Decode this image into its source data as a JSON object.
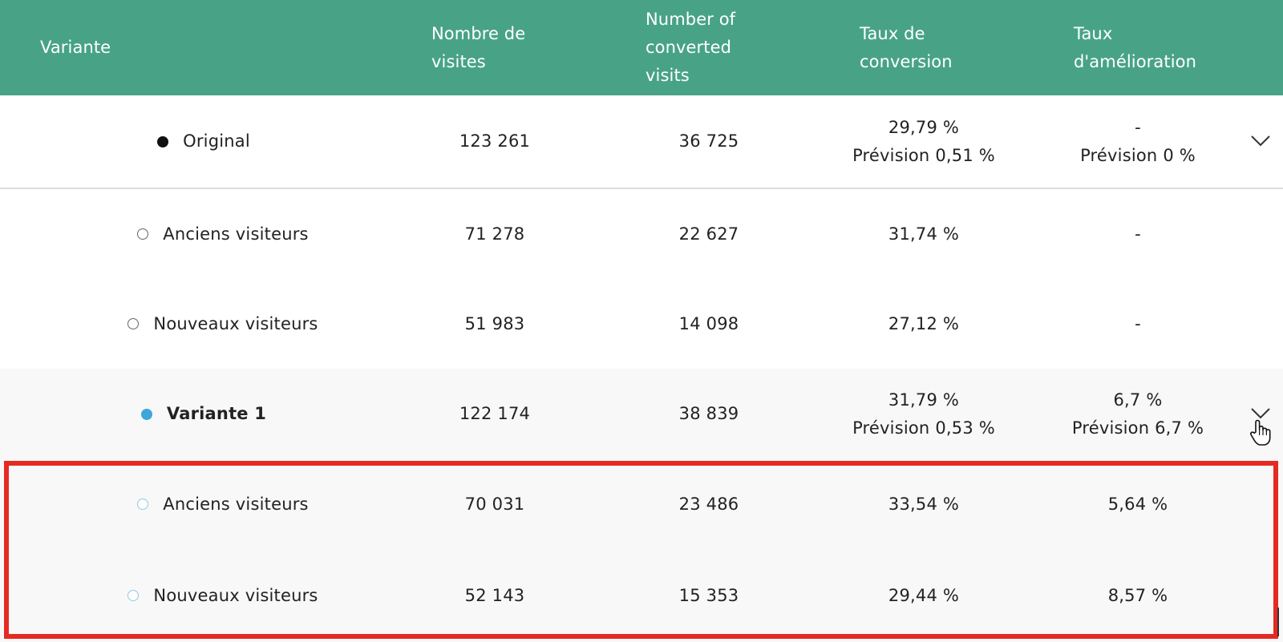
{
  "columns": [
    [
      "Variante"
    ],
    [
      "Nombre de",
      "visites"
    ],
    [
      "Number of",
      "converted",
      "visits"
    ],
    [
      "Taux de",
      "conversion"
    ],
    [
      "Taux",
      "d'amélioration"
    ]
  ],
  "rows": [
    {
      "name": "Original",
      "visits": "123 261",
      "converted": "36 725",
      "rate": "29,79 %",
      "rate_forecast": "Prévision 0,51 %",
      "improvement": "-",
      "improvement_forecast": "Prévision 0 %"
    },
    {
      "name": "Anciens visiteurs",
      "visits": "71 278",
      "converted": "22 627",
      "rate": "31,74 %",
      "improvement": "-"
    },
    {
      "name": "Nouveaux visiteurs",
      "visits": "51 983",
      "converted": "14 098",
      "rate": "27,12 %",
      "improvement": "-"
    },
    {
      "name": "Variante 1",
      "visits": "122 174",
      "converted": "38 839",
      "rate": "31,79 %",
      "rate_forecast": "Prévision 0,53 %",
      "improvement": "6,7 %",
      "improvement_forecast": "Prévision 6,7 %"
    },
    {
      "name": "Anciens visiteurs",
      "visits": "70 031",
      "converted": "23 486",
      "rate": "33,54 %",
      "improvement": "5,64 %"
    },
    {
      "name": "Nouveaux visiteurs",
      "visits": "52 143",
      "converted": "15 353",
      "rate": "29,44 %",
      "improvement": "8,57 %"
    }
  ],
  "colors": {
    "header_bg": "#48a386",
    "original_dot": "#111111",
    "variant_dot": "#3da6db",
    "highlight_border": "#e52a23",
    "grey_row_bg": "#f8f8f8"
  },
  "icons": {
    "expand": "chevron-down-icon",
    "cursor": "hand-pointer-icon"
  }
}
